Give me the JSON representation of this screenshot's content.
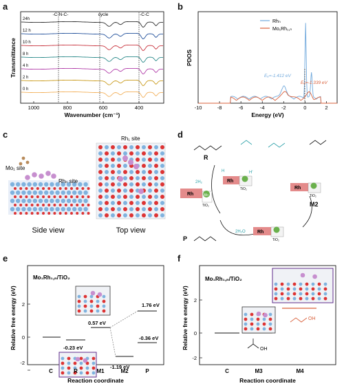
{
  "panels": {
    "a": {
      "letter": "a"
    },
    "b": {
      "letter": "b"
    },
    "c": {
      "letter": "c"
    },
    "d": {
      "letter": "d"
    },
    "e": {
      "letter": "e"
    },
    "f": {
      "letter": "f"
    }
  },
  "panel_a": {
    "ylabel": "Transmittance",
    "xlabel": "Wavenumber (cm⁻¹)",
    "xticks": [
      "1000",
      "800",
      "600",
      "400"
    ],
    "annotations": [
      "-C-N-C-",
      "cycle",
      "-C-C"
    ],
    "series": [
      {
        "name": "24h",
        "color": "#2b2b2b"
      },
      {
        "name": "12 h",
        "color": "#1f4e9a"
      },
      {
        "name": "10 h",
        "color": "#c8323c"
      },
      {
        "name": "8 h",
        "color": "#2a8a8a"
      },
      {
        "name": "4 h",
        "color": "#b03aa8"
      },
      {
        "name": "2 h",
        "color": "#c99a1a"
      },
      {
        "name": "0 h",
        "color": "#f2b05a"
      }
    ]
  },
  "panel_b": {
    "ylabel": "PDOS",
    "xlabel": "Energy (eV)",
    "xticks": [
      "-10",
      "-8",
      "-6",
      "-4",
      "-2",
      "0",
      "2"
    ],
    "legend": [
      {
        "name": "Rhₙ",
        "color": "#6fa8dc"
      },
      {
        "name": "Mo₁Rh₁,ₙ",
        "color": "#d9603b"
      }
    ],
    "ed1": "Eₑ=-1.412 eV",
    "ed2": "Eₑ=-1.339 eV"
  },
  "panel_c": {
    "mo_site": "Mo₁ site",
    "rhn_site": "Rhₙ site",
    "rh1_site": "Rh₁ site",
    "side_view": "Side view",
    "top_view": "Top view"
  },
  "panel_d": {
    "r_label": "R",
    "m2_label": "M2",
    "p_label": "P",
    "rh": "Rh",
    "mo": "Mo",
    "tio2": "TiO₂",
    "h2": "2H₂",
    "h2o": "2H₂O",
    "h": "H",
    "hprime": "H'"
  },
  "panel_e": {
    "title": "Mo₁Rh₁,ₙ/TiO₂",
    "ylabel": "Relative free energy (eV)",
    "xlabel": "Reaction coordinate",
    "yticks": [
      "2",
      "0",
      "-2"
    ],
    "xcats": [
      "C",
      "R",
      "M1",
      "M2",
      "P"
    ],
    "values": [
      "-0.23 eV",
      "0.57 eV",
      "-1.19 eV",
      "1.76 eV",
      "-0.36 eV"
    ]
  },
  "panel_f": {
    "title": "Mo₁Rh₁,ₙ/TiO₂",
    "ylabel": "Relative free energy (eV)",
    "xlabel": "Reaction coordinate",
    "yticks": [
      "2",
      "0",
      "-2"
    ],
    "xcats": [
      "C",
      "M3",
      "M4"
    ],
    "oh": "OH"
  }
}
